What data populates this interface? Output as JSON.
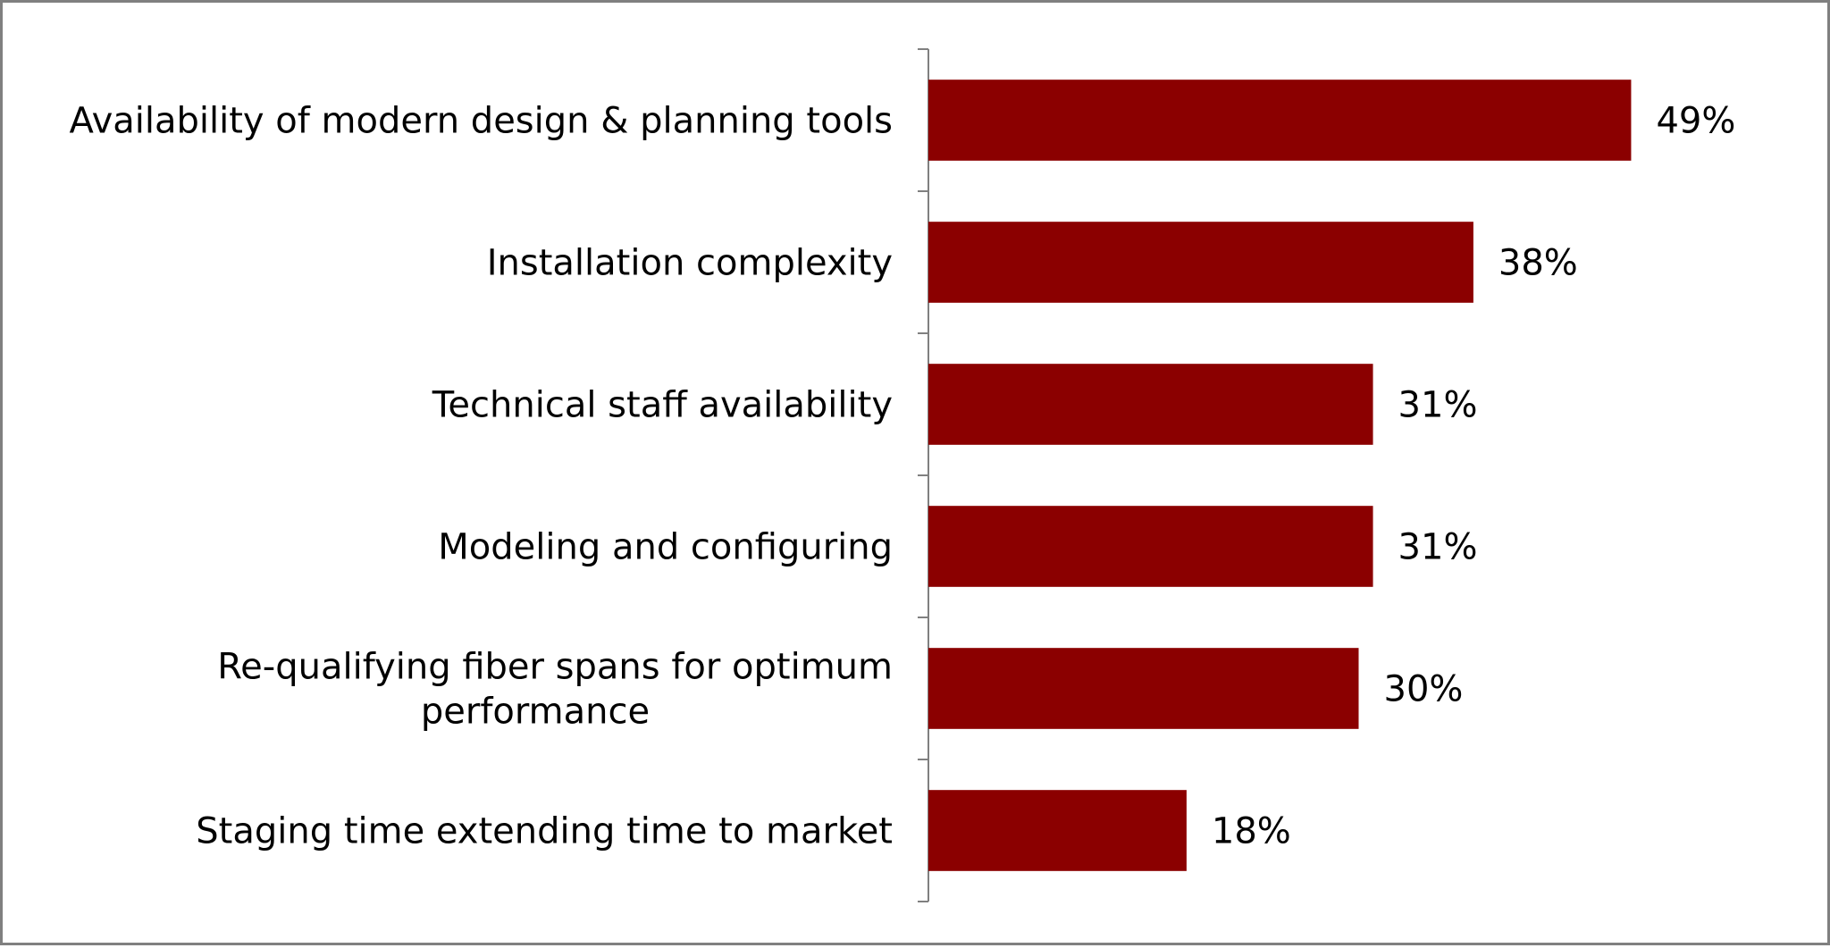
{
  "chart_data": {
    "type": "bar",
    "orientation": "horizontal",
    "categories": [
      "Availability of modern design & planning tools",
      "Installation complexity",
      "Technical staff availability",
      "Modeling and configuring",
      "Re-qualifying fiber spans for optimum performance",
      "Staging time extending time to market"
    ],
    "category_lines": [
      [
        "Availability of modern design & planning tools"
      ],
      [
        "Installation complexity"
      ],
      [
        "Technical staff availability"
      ],
      [
        "Modeling and configuring"
      ],
      [
        "Re-qualifying fiber spans for optimum",
        "performance"
      ],
      [
        "Staging time extending time to market"
      ]
    ],
    "values": [
      49,
      38,
      31,
      31,
      30,
      18
    ],
    "value_labels": [
      "49%",
      "38%",
      "31%",
      "31%",
      "30%",
      "18%"
    ],
    "unit": "%",
    "xlim": [
      0,
      60
    ],
    "grid": false,
    "legend": "none",
    "title": "",
    "xlabel": "",
    "ylabel": "",
    "colors": {
      "bar": "#8B0000",
      "axis": "#808080",
      "frame": "#808080"
    }
  }
}
